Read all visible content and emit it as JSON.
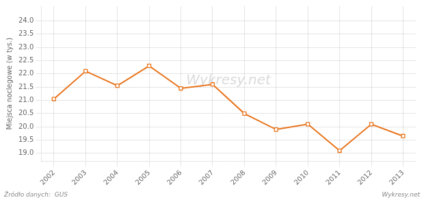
{
  "chart_data": {
    "type": "line",
    "x": [
      2002,
      2003,
      2004,
      2005,
      2006,
      2007,
      2008,
      2009,
      2010,
      2011,
      2012,
      2013
    ],
    "values": [
      21.05,
      22.1,
      21.55,
      22.3,
      21.45,
      21.6,
      20.5,
      19.9,
      20.1,
      19.1,
      20.1,
      19.65
    ],
    "color": "#e8731a",
    "marker": "square",
    "y_label": "Miejsca noclegowe (w tys.)",
    "xlim": [
      2001.6,
      2013.4
    ],
    "xticks": [
      2002,
      2003,
      2004,
      2005,
      2006,
      2007,
      2008,
      2009,
      2010,
      2011,
      2012,
      2013
    ],
    "ylim": [
      18.7,
      24.55
    ],
    "yticks": [
      {
        "value": 19.0,
        "label": "19.0"
      },
      19.5,
      {
        "value": 20.0,
        "label": "20.0"
      },
      20.5,
      {
        "value": 21.0,
        "label": "21.0"
      },
      21.5,
      {
        "value": 22.0,
        "label": "22.0"
      },
      22.5,
      {
        "value": 23.0,
        "label": "23.0"
      },
      23.5,
      {
        "value": 24.0,
        "label": "24.0"
      }
    ],
    "grid": true,
    "annotations": [
      "Wykresy.net",
      "Źródło danych:  GUS",
      "Wykresy.net"
    ]
  }
}
